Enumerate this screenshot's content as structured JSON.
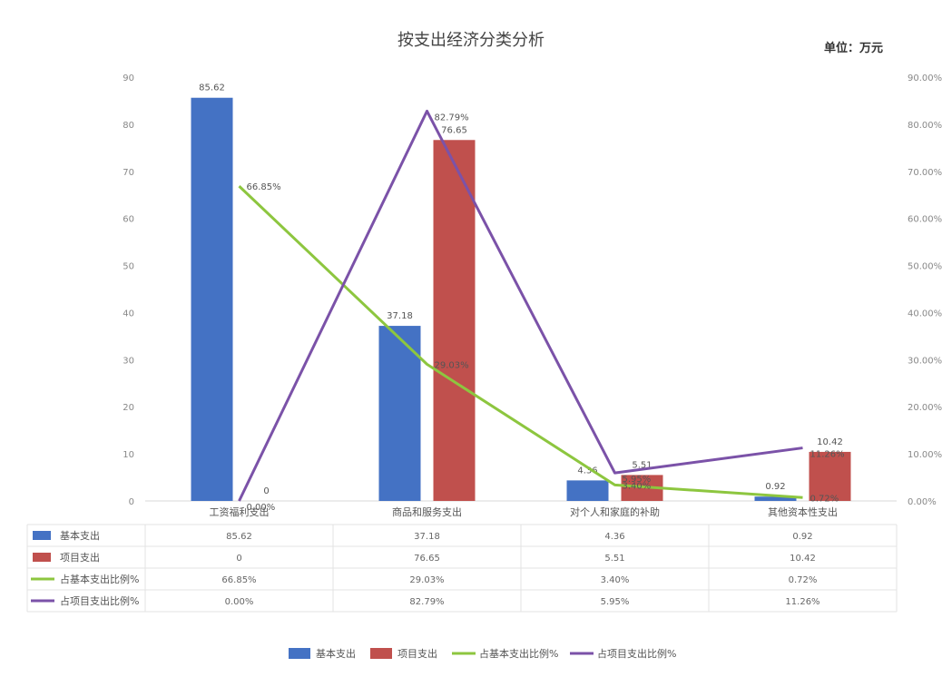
{
  "title": "按支出经济分类分析",
  "unit": "单位：万元",
  "chart_data": {
    "type": "bar",
    "categories": [
      "工资福利支出",
      "商品和服务支出",
      "对个人和家庭的补助",
      "其他资本性支出"
    ],
    "series": [
      {
        "name": "基本支出",
        "type": "bar",
        "axis": "left",
        "color": "#4472C4",
        "values": [
          85.62,
          37.18,
          4.36,
          0.92
        ],
        "labels": [
          "85.62",
          "37.18",
          "4.36",
          "0.92"
        ]
      },
      {
        "name": "项目支出",
        "type": "bar",
        "axis": "left",
        "color": "#C0504D",
        "values": [
          0,
          76.65,
          5.51,
          10.42
        ],
        "labels": [
          "0",
          "76.65",
          "5.51",
          "10.42"
        ]
      },
      {
        "name": "占基本支出比例%",
        "type": "line",
        "axis": "right",
        "color": "#8DC63F",
        "values": [
          66.85,
          29.03,
          3.4,
          0.72
        ],
        "labels": [
          "66.85%",
          "29.03%",
          "3.40%",
          "0.72%"
        ]
      },
      {
        "name": "占项目支出比例%",
        "type": "line",
        "axis": "right",
        "color": "#7B52A8",
        "values": [
          0.0,
          82.79,
          5.95,
          11.26
        ],
        "labels": [
          "0.00%",
          "82.79%",
          "5.95%",
          "11.26%"
        ]
      }
    ],
    "y_left": {
      "min": 0,
      "max": 90,
      "ticks": [
        "0",
        "10",
        "20",
        "30",
        "40",
        "50",
        "60",
        "70",
        "80",
        "90"
      ]
    },
    "y_right": {
      "min": 0,
      "max": 90,
      "ticks": [
        "0.00%",
        "10.00%",
        "20.00%",
        "30.00%",
        "40.00%",
        "50.00%",
        "60.00%",
        "70.00%",
        "80.00%",
        "90.00%"
      ]
    },
    "grid": false,
    "legend": "bottom",
    "data_table": true
  }
}
